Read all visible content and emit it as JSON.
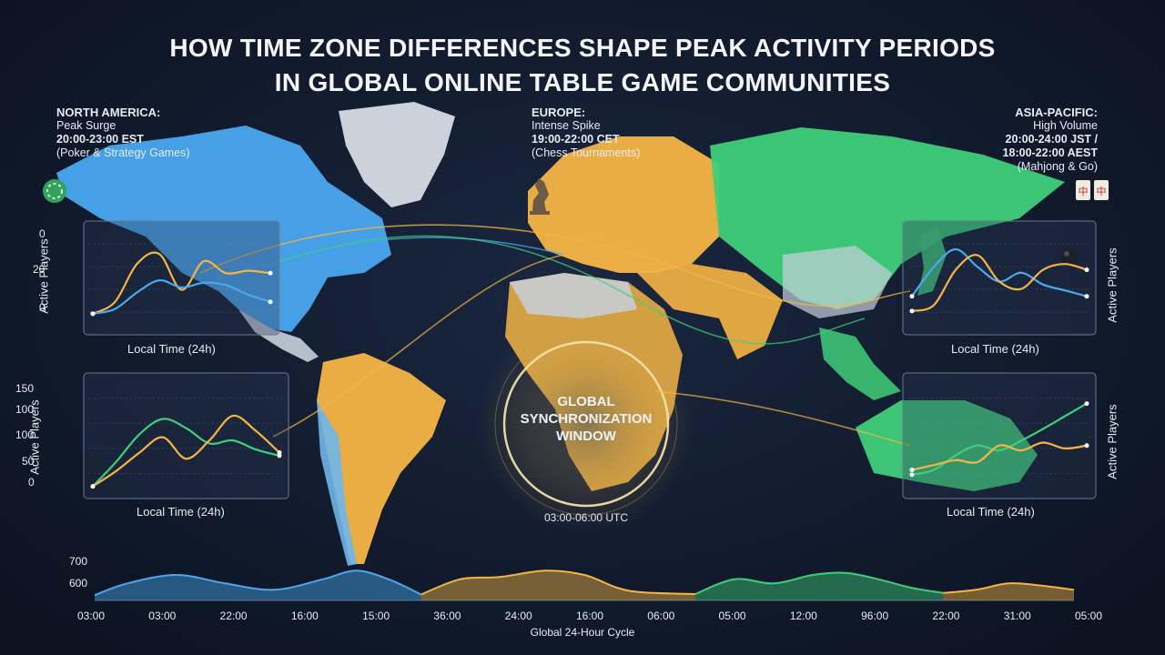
{
  "title": {
    "line1": "HOW TIME ZONE DIFFERENCES SHAPE PEAK ACTIVITY PERIODS",
    "line2": "IN GLOBAL ONLINE TABLE GAME COMMUNITIES"
  },
  "regions": {
    "north_america": {
      "name": "NORTH AMERICA:",
      "desc": "Peak Surge",
      "time": "20:00-23:00 EST",
      "games": "(Poker & Strategy Games)"
    },
    "europe": {
      "name": "EUROPE:",
      "desc": "Intense Spike",
      "time": "19:00-22:00 CET",
      "games": "(Chess Tournaments)"
    },
    "asia_pacific": {
      "name": "ASIA-PACIFIC:",
      "desc": "High Volume",
      "time1": "20:00-24:00 JST /",
      "time2": "18:00-22:00 AEST",
      "games": "(Mahjong & Go)"
    }
  },
  "sync": {
    "label1": "GLOBAL",
    "label2": "SYNCHRONIZATION",
    "label3": "WINDOW",
    "time": "03:00-06:00 UTC"
  },
  "colors": {
    "north_america": "#4aa8f0",
    "europe": "#f5b544",
    "asia_pacific": "#3fcf7a"
  },
  "chart_data": [
    {
      "type": "line",
      "region": "north_america",
      "xlabel": "Local Time (24h)",
      "ylabel": "Active Players",
      "yticks": [
        "0",
        "20",
        "0"
      ],
      "ylim": [
        0,
        40
      ],
      "x": [
        0,
        1,
        2,
        3,
        4,
        5,
        6,
        7,
        8
      ],
      "series": [
        {
          "color": "#f5b544",
          "values": [
            5,
            10,
            26,
            30,
            15,
            27,
            22,
            23,
            22
          ]
        },
        {
          "color": "#4aa8f0",
          "values": [
            5,
            7,
            14,
            19,
            16,
            18,
            17,
            13,
            10
          ]
        }
      ]
    },
    {
      "type": "line",
      "region": "south_america",
      "xlabel": "Local Time (24h)",
      "ylabel": "Active Players",
      "yticks": [
        "150",
        "100",
        "100",
        "50",
        "0"
      ],
      "ylim": [
        0,
        175
      ],
      "x": [
        0,
        1,
        2,
        3,
        4,
        5,
        6,
        7,
        8
      ],
      "series": [
        {
          "color": "#3fcf7a",
          "values": [
            5,
            45,
            90,
            115,
            100,
            75,
            80,
            65,
            55
          ]
        },
        {
          "color": "#f5b544",
          "values": [
            5,
            30,
            60,
            85,
            50,
            80,
            120,
            95,
            60
          ]
        }
      ]
    },
    {
      "type": "line",
      "region": "asia_pacific",
      "xlabel": "Local Time (24h)",
      "ylabel": "Active Players",
      "yticks": [],
      "x": [
        0,
        1,
        2,
        3,
        4,
        5,
        6,
        7,
        8
      ],
      "series": [
        {
          "color": "#4aa8f0",
          "values": [
            20,
            40,
            52,
            40,
            30,
            36,
            28,
            24,
            20
          ]
        },
        {
          "color": "#f5b544",
          "values": [
            10,
            14,
            38,
            48,
            30,
            25,
            38,
            42,
            38
          ]
        }
      ]
    },
    {
      "type": "line",
      "region": "oceania",
      "xlabel": "Local Time (24h)",
      "ylabel": "Active Players",
      "yticks": [],
      "x": [
        0,
        1,
        2,
        3,
        4,
        5,
        6,
        7,
        8
      ],
      "series": [
        {
          "color": "#3fcf7a",
          "values": [
            15,
            20,
            35,
            45,
            40,
            50,
            62,
            75,
            88
          ]
        },
        {
          "color": "#f5b544",
          "values": [
            20,
            25,
            30,
            28,
            45,
            40,
            48,
            42,
            45
          ]
        }
      ]
    },
    {
      "type": "area",
      "xlabel": "Global 24-Hour Cycle",
      "yticks": [
        "700",
        "600"
      ],
      "ylim": [
        540,
        720
      ],
      "categories": [
        "03:00",
        "03:00",
        "22:00",
        "16:00",
        "15:00",
        "36:00",
        "24:00",
        "16:00",
        "06:00",
        "05:00",
        "12:00",
        "96:00",
        "22:00",
        "31:00",
        "05:00"
      ],
      "series": [
        {
          "color": "#4aa8f0",
          "x": [
            0,
            0.5,
            1.25,
            2,
            2.75,
            3.5,
            4,
            4.5,
            5
          ],
          "values": [
            565,
            620,
            660,
            620,
            590,
            640,
            680,
            640,
            568
          ]
        },
        {
          "color": "#f5b544",
          "x": [
            5,
            5.6,
            6.2,
            6.9,
            7.5,
            8,
            8.4,
            9.2
          ],
          "values": [
            568,
            640,
            650,
            680,
            660,
            600,
            578,
            570
          ]
        },
        {
          "color": "#3fcf7a",
          "x": [
            9.2,
            9.8,
            10.4,
            11,
            11.5,
            12,
            12.5,
            13
          ],
          "values": [
            570,
            640,
            620,
            660,
            670,
            640,
            600,
            575
          ]
        },
        {
          "color": "#f5b544",
          "x": [
            13,
            13.5,
            14,
            14.5,
            15
          ],
          "values": [
            575,
            590,
            620,
            610,
            590
          ]
        }
      ]
    }
  ]
}
